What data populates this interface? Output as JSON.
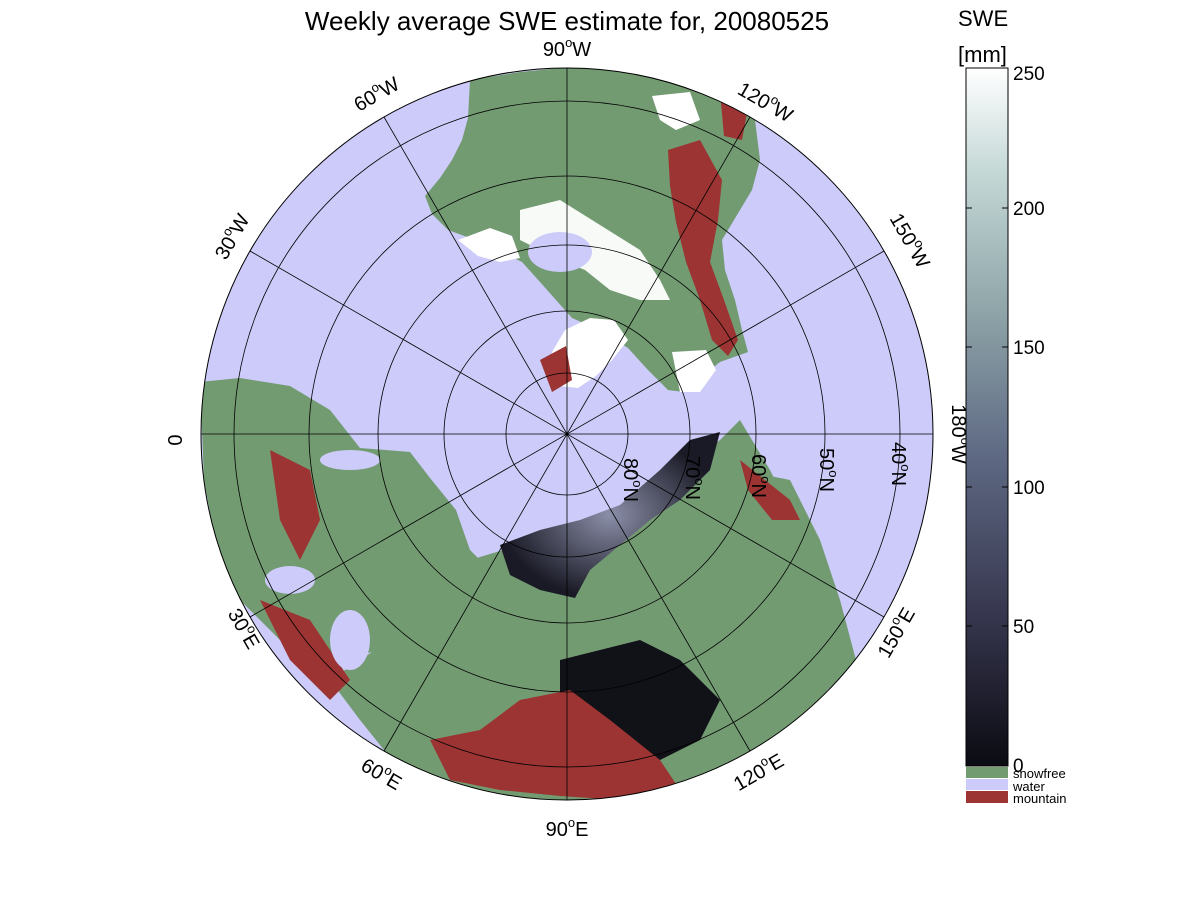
{
  "title": "Weekly average SWE estimate for, 20080525",
  "colorbar": {
    "label_line1": "SWE",
    "label_line2": "[mm]",
    "range": [
      0,
      250
    ],
    "ticks": [
      "0",
      "50",
      "100",
      "150",
      "200",
      "250"
    ],
    "gradient_colors": [
      "#0b0b12",
      "#33334a",
      "#5f6a84",
      "#8ea4a8",
      "#c4d8d6",
      "#ffffff"
    ],
    "categories": [
      {
        "name": "snowfree",
        "color": "#739b72"
      },
      {
        "name": "water",
        "color": "#cccbf9"
      },
      {
        "name": "mountain",
        "color": "#9b3432"
      }
    ]
  },
  "map": {
    "projection": "north polar stereographic",
    "ocean_color": "#cccbf9",
    "land_color": "#739b72",
    "snow_color": "#ffffff",
    "deep_snow_color": "#111118",
    "mountain_color": "#9b3432",
    "longitude_labels": [
      {
        "deg": "90",
        "sup": "o",
        "hem": "W"
      },
      {
        "deg": "60",
        "sup": "o",
        "hem": "W"
      },
      {
        "deg": "120",
        "sup": "o",
        "hem": "W"
      },
      {
        "deg": "30",
        "sup": "o",
        "hem": "W"
      },
      {
        "deg": "150",
        "sup": "o",
        "hem": "W"
      },
      {
        "deg": "0",
        "sup": "",
        "hem": ""
      },
      {
        "deg": "180",
        "sup": "o",
        "hem": "W"
      },
      {
        "deg": "30",
        "sup": "o",
        "hem": "E"
      },
      {
        "deg": "150",
        "sup": "o",
        "hem": "E"
      },
      {
        "deg": "60",
        "sup": "o",
        "hem": "E"
      },
      {
        "deg": "120",
        "sup": "o",
        "hem": "E"
      },
      {
        "deg": "90",
        "sup": "o",
        "hem": "E"
      }
    ],
    "latitude_labels": [
      {
        "deg": "80",
        "sup": "o",
        "hem": "N"
      },
      {
        "deg": "70",
        "sup": "o",
        "hem": "N"
      },
      {
        "deg": "60",
        "sup": "o",
        "hem": "N"
      },
      {
        "deg": "50",
        "sup": "o",
        "hem": "N"
      },
      {
        "deg": "40",
        "sup": "o",
        "hem": "N"
      }
    ]
  }
}
